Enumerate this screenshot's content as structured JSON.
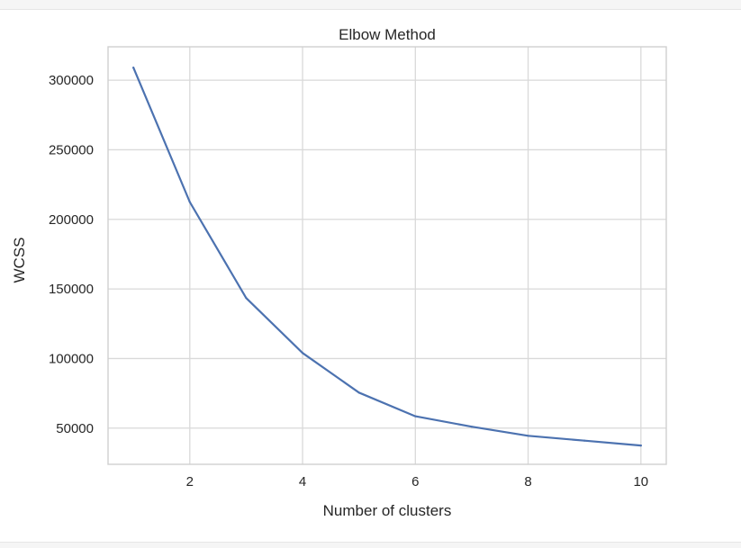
{
  "chart_data": {
    "type": "line",
    "title": "Elbow Method",
    "xlabel": "Number of clusters",
    "ylabel": "WCSS",
    "xlim": [
      0.55,
      10.45
    ],
    "ylim": [
      24000,
      324000
    ],
    "grid": true,
    "x_ticks": [
      2,
      4,
      6,
      8,
      10
    ],
    "y_ticks": [
      50000,
      100000,
      150000,
      200000,
      250000,
      300000
    ],
    "series": [
      {
        "color": "#4c72b0",
        "x": [
          1,
          2,
          3,
          4,
          5,
          6,
          7,
          8,
          9,
          10
        ],
        "y": [
          309000,
          212500,
          143500,
          104000,
          75500,
          58500,
          51000,
          44500,
          41000,
          37500
        ]
      }
    ]
  }
}
